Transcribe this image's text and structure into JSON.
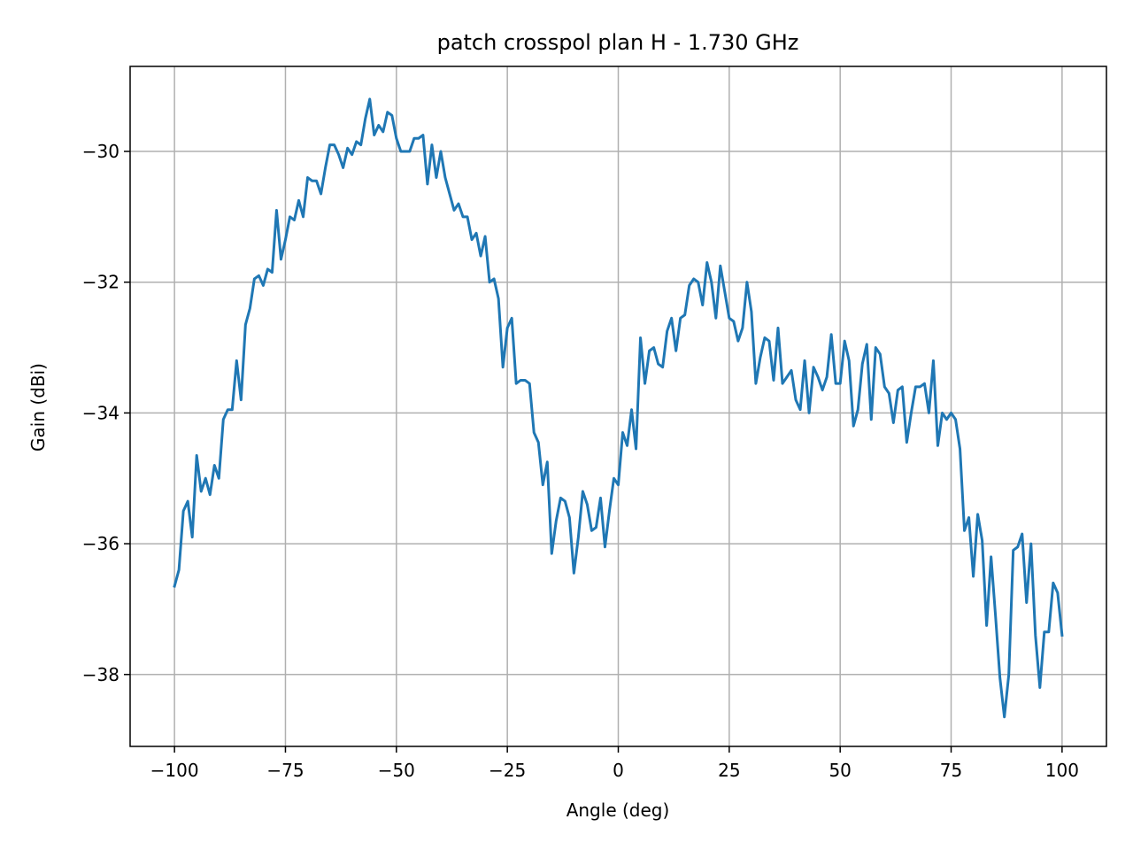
{
  "chart_data": {
    "type": "line",
    "title": "patch crosspol plan H - 1.730 GHz",
    "xlabel": "Angle (deg)",
    "ylabel": "Gain (dBi)",
    "xlim": [
      -110,
      110
    ],
    "ylim": [
      -39.1,
      -28.7
    ],
    "xticks": [
      -100,
      -75,
      -50,
      -25,
      0,
      25,
      50,
      75,
      100
    ],
    "yticks": [
      -38,
      -36,
      -34,
      -32,
      -30
    ],
    "xtick_labels": [
      "−100",
      "−75",
      "−50",
      "−25",
      "0",
      "25",
      "50",
      "75",
      "100"
    ],
    "ytick_labels": [
      "−38",
      "−36",
      "−34",
      "−32",
      "−30"
    ],
    "grid": true,
    "series": [
      {
        "color": "#1f77b4",
        "x": [
          -100,
          -99,
          -98,
          -97,
          -96,
          -95,
          -94,
          -93,
          -92,
          -91,
          -90,
          -89,
          -88,
          -87,
          -86,
          -85,
          -84,
          -83,
          -82,
          -81,
          -80,
          -79,
          -78,
          -77,
          -76,
          -75,
          -74,
          -73,
          -72,
          -71,
          -70,
          -69,
          -68,
          -67,
          -66,
          -65,
          -64,
          -63,
          -62,
          -61,
          -60,
          -59,
          -58,
          -57,
          -56,
          -55,
          -54,
          -53,
          -52,
          -51,
          -50,
          -49,
          -48,
          -47,
          -46,
          -45,
          -44,
          -43,
          -42,
          -41,
          -40,
          -39,
          -38,
          -37,
          -36,
          -35,
          -34,
          -33,
          -32,
          -31,
          -30,
          -29,
          -28,
          -27,
          -26,
          -25,
          -24,
          -23,
          -22,
          -21,
          -20,
          -19,
          -18,
          -17,
          -16,
          -15,
          -14,
          -13,
          -12,
          -11,
          -10,
          -9,
          -8,
          -7,
          -6,
          -5,
          -4,
          -3,
          -2,
          -1,
          0,
          1,
          2,
          3,
          4,
          5,
          6,
          7,
          8,
          9,
          10,
          11,
          12,
          13,
          14,
          15,
          16,
          17,
          18,
          19,
          20,
          21,
          22,
          23,
          24,
          25,
          26,
          27,
          28,
          29,
          30,
          31,
          32,
          33,
          34,
          35,
          36,
          37,
          38,
          39,
          40,
          41,
          42,
          43,
          44,
          45,
          46,
          47,
          48,
          49,
          50,
          51,
          52,
          53,
          54,
          55,
          56,
          57,
          58,
          59,
          60,
          61,
          62,
          63,
          64,
          65,
          66,
          67,
          68,
          69,
          70,
          71,
          72,
          73,
          74,
          75,
          76,
          77,
          78,
          79,
          80,
          81,
          82,
          83,
          84,
          85,
          86,
          87,
          88,
          89,
          90,
          91,
          92,
          93,
          94,
          95,
          96,
          97,
          98,
          99,
          100
        ],
        "y": [
          -36.65,
          -36.4,
          -35.5,
          -35.35,
          -35.9,
          -34.65,
          -35.2,
          -35.0,
          -35.25,
          -34.8,
          -35.0,
          -34.1,
          -33.95,
          -33.95,
          -33.2,
          -33.8,
          -32.65,
          -32.4,
          -31.95,
          -31.9,
          -32.05,
          -31.8,
          -31.85,
          -30.9,
          -31.65,
          -31.35,
          -31.0,
          -31.05,
          -30.75,
          -31.0,
          -30.4,
          -30.45,
          -30.45,
          -30.65,
          -30.25,
          -29.9,
          -29.9,
          -30.05,
          -30.25,
          -29.95,
          -30.05,
          -29.85,
          -29.9,
          -29.5,
          -29.2,
          -29.75,
          -29.6,
          -29.7,
          -29.4,
          -29.45,
          -29.8,
          -30.0,
          -30.0,
          -30.0,
          -29.8,
          -29.8,
          -29.75,
          -30.5,
          -29.9,
          -30.4,
          -30.0,
          -30.4,
          -30.65,
          -30.9,
          -30.8,
          -31.0,
          -31.0,
          -31.35,
          -31.25,
          -31.6,
          -31.3,
          -32.0,
          -31.95,
          -32.25,
          -33.3,
          -32.7,
          -32.55,
          -33.55,
          -33.5,
          -33.5,
          -33.55,
          -34.3,
          -34.45,
          -35.1,
          -34.75,
          -36.15,
          -35.65,
          -35.3,
          -35.35,
          -35.6,
          -36.45,
          -35.9,
          -35.2,
          -35.4,
          -35.8,
          -35.75,
          -35.3,
          -36.05,
          -35.5,
          -35.0,
          -35.1,
          -34.3,
          -34.5,
          -33.95,
          -34.55,
          -32.85,
          -33.55,
          -33.05,
          -33.0,
          -33.25,
          -33.3,
          -32.75,
          -32.55,
          -33.05,
          -32.55,
          -32.5,
          -32.05,
          -31.95,
          -32.0,
          -32.35,
          -31.7,
          -32.0,
          -32.55,
          -31.75,
          -32.15,
          -32.55,
          -32.6,
          -32.9,
          -32.7,
          -32.0,
          -32.45,
          -33.55,
          -33.15,
          -32.85,
          -32.9,
          -33.5,
          -32.7,
          -33.55,
          -33.45,
          -33.35,
          -33.8,
          -33.95,
          -33.2,
          -34.0,
          -33.3,
          -33.45,
          -33.65,
          -33.45,
          -32.8,
          -33.55,
          -33.55,
          -32.9,
          -33.2,
          -34.2,
          -33.95,
          -33.25,
          -32.95,
          -34.1,
          -33.0,
          -33.1,
          -33.6,
          -33.7,
          -34.15,
          -33.65,
          -33.6,
          -34.45,
          -34.0,
          -33.6,
          -33.6,
          -33.55,
          -34.0,
          -33.2,
          -34.5,
          -34.0,
          -34.1,
          -34.0,
          -34.1,
          -34.55,
          -35.8,
          -35.6,
          -36.5,
          -35.55,
          -35.95,
          -37.25,
          -36.2,
          -37.1,
          -38.05,
          -38.65,
          -38.0,
          -36.1,
          -36.05,
          -35.85,
          -36.9,
          -36.0,
          -37.4,
          -38.2,
          -37.35,
          -37.35,
          -36.6,
          -36.75,
          -37.4
        ]
      }
    ]
  }
}
